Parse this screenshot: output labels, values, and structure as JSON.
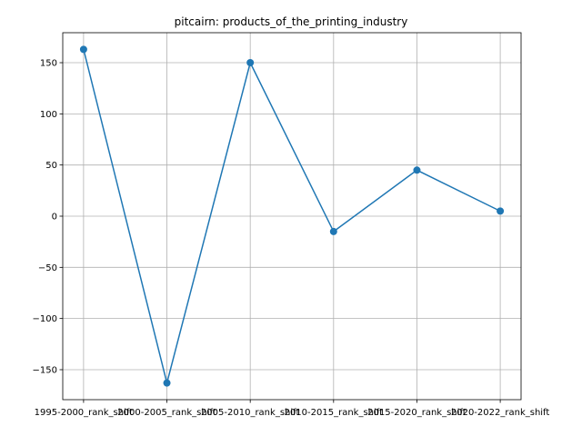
{
  "chart_data": {
    "type": "line",
    "title": "pitcairn: products_of_the_printing_industry",
    "xlabel": "",
    "ylabel": "",
    "categories": [
      "1995-2000_rank_shift",
      "2000-2005_rank_shift",
      "2005-2010_rank_shift",
      "2010-2015_rank_shift",
      "2015-2020_rank_shift",
      "2020-2022_rank_shift"
    ],
    "series": [
      {
        "values": [
          163,
          -163,
          150,
          -15,
          45,
          5
        ],
        "color": "#1f77b4",
        "marker": "circle"
      }
    ],
    "ylim": [
      -179.3,
      179.3
    ],
    "yticks": [
      -150,
      -100,
      -50,
      0,
      50,
      100,
      150
    ],
    "ytick_labels": [
      "−150",
      "−100",
      "−50",
      "0",
      "50",
      "100",
      "150"
    ],
    "grid": true
  }
}
